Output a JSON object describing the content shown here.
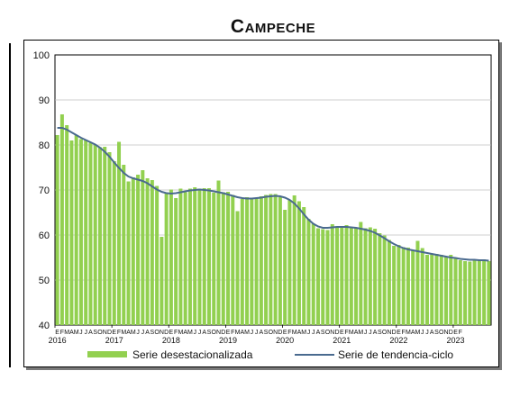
{
  "chart_data": {
    "type": "bar",
    "title": "Campeche",
    "ylim": [
      40,
      100
    ],
    "yticks": [
      40,
      50,
      60,
      70,
      80,
      90,
      100
    ],
    "grid": true,
    "legend_position": "bottom",
    "month_labels": [
      "E",
      "F",
      "M",
      "A",
      "M",
      "J",
      "J",
      "A",
      "S",
      "O",
      "N",
      "D"
    ],
    "years": [
      "2016",
      "2017",
      "2018",
      "2019",
      "2020",
      "2021",
      "2022",
      "2023"
    ],
    "last_year_month_labels": [
      "E",
      "F"
    ],
    "series": [
      {
        "name": "Serie desestacionalizada",
        "type": "bar",
        "color": "#92d050",
        "values": [
          82.2,
          86.8,
          84.4,
          81,
          82.2,
          81.3,
          81.1,
          80.5,
          80.1,
          79.5,
          79.6,
          78.4,
          76.4,
          80.7,
          75.6,
          71.9,
          72.8,
          73.4,
          74.4,
          72.6,
          72.2,
          70.9,
          59.6,
          69.5,
          70.1,
          68.2,
          70.3,
          69.5,
          70.3,
          70.6,
          70.3,
          70.4,
          70.4,
          69.4,
          72.1,
          69.5,
          69.6,
          68.9,
          65.3,
          68,
          68.4,
          68.2,
          68.3,
          68.6,
          68.9,
          69.1,
          69.1,
          68.4,
          65.6,
          67.8,
          68.8,
          67.5,
          66.2,
          63.6,
          62.5,
          61.5,
          61.3,
          61.1,
          62.4,
          61.7,
          62,
          62.2,
          61.7,
          61.7,
          62.9,
          61.5,
          61.7,
          61.4,
          60.4,
          59.9,
          58.9,
          57.6,
          57.8,
          57.3,
          57.2,
          56.6,
          58.7,
          57.1,
          55.6,
          55.9,
          55.8,
          55.6,
          55.3,
          55.6,
          54.9,
          54.4,
          54.2,
          54.1,
          54.5,
          54.4,
          54.6,
          54.2
        ]
      },
      {
        "name": "Serie de tendencia-ciclo",
        "type": "line",
        "color": "#4a6a8f",
        "values": [
          83.8,
          83.8,
          83.4,
          82.8,
          82.2,
          81.6,
          81.1,
          80.6,
          80.1,
          79.4,
          78.5,
          77.4,
          76.1,
          74.9,
          73.8,
          73,
          72.6,
          72.3,
          72,
          71.5,
          70.8,
          70.1,
          69.6,
          69.3,
          69.2,
          69.3,
          69.5,
          69.7,
          69.9,
          70,
          70.1,
          70,
          69.9,
          69.7,
          69.5,
          69.3,
          69,
          68.7,
          68.4,
          68.2,
          68.1,
          68.1,
          68.2,
          68.3,
          68.5,
          68.6,
          68.7,
          68.6,
          68.3,
          67.8,
          67,
          65.9,
          64.6,
          63.4,
          62.5,
          61.9,
          61.6,
          61.6,
          61.7,
          61.8,
          61.8,
          61.8,
          61.7,
          61.6,
          61.4,
          61.2,
          60.9,
          60.5,
          59.9,
          59.3,
          58.6,
          58,
          57.5,
          57.1,
          56.8,
          56.6,
          56.4,
          56.2,
          56,
          55.8,
          55.6,
          55.4,
          55.2,
          55,
          54.9,
          54.7,
          54.6,
          54.5,
          54.5,
          54.4,
          54.4,
          54.3
        ]
      }
    ]
  }
}
